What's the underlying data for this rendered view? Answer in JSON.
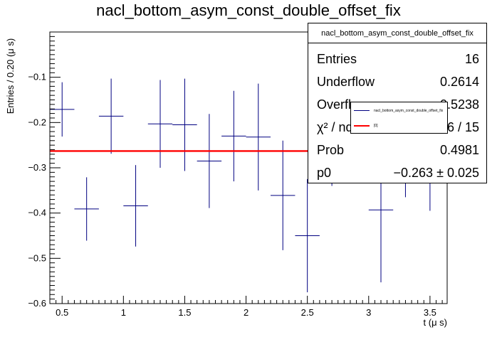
{
  "chart_data": {
    "type": "scatter",
    "title": "nacl_bottom_asym_const_double_offset_fix",
    "xlabel": "t (μ s)",
    "ylabel": "Entries / 0.20 (μ s)",
    "xlim": [
      0.4,
      3.64
    ],
    "ylim": [
      -0.6,
      0.0
    ],
    "x_ticks": [
      0.5,
      1,
      1.5,
      2,
      2.5,
      3,
      3.5
    ],
    "x_tick_labels": [
      "0.5",
      "1",
      "1.5",
      "2",
      "2.5",
      "3",
      "3.5"
    ],
    "y_ticks": [
      -0.1,
      -0.2,
      -0.3,
      -0.4,
      -0.5,
      -0.6
    ],
    "y_tick_labels": [
      "−0.1",
      "−0.2",
      "−0.3",
      "−0.4",
      "−0.5",
      "−0.6"
    ],
    "series": [
      {
        "name": "nacl_bottom_asym_const_double_offset_fix",
        "color": "#000080",
        "x": [
          0.5,
          0.7,
          0.9,
          1.1,
          1.3,
          1.5,
          1.7,
          1.9,
          2.1,
          2.3,
          2.5,
          2.7,
          2.9,
          3.1,
          3.3,
          3.5
        ],
        "y": [
          -0.171,
          -0.391,
          -0.186,
          -0.384,
          -0.203,
          -0.205,
          -0.285,
          -0.23,
          -0.232,
          -0.361,
          -0.45,
          -0.26,
          -0.2,
          -0.393,
          -0.33,
          -0.33
        ],
        "yerr": [
          0.06,
          0.07,
          0.083,
          0.09,
          0.097,
          0.102,
          0.104,
          0.1,
          0.118,
          0.121,
          0.125,
          0.08,
          0.08,
          0.16,
          0.035,
          0.065
        ],
        "xerr": 0.1
      }
    ],
    "fit": {
      "name": "[0]",
      "color": "#ff0000",
      "value": -0.263
    }
  },
  "stats": {
    "title": "nacl_bottom_asym_const_double_offset_fix",
    "rows": [
      {
        "label": "Entries",
        "value": "16"
      },
      {
        "label": "Underflow",
        "value": "0.2614"
      },
      {
        "label": "Overflow",
        "value": "0.5238"
      },
      {
        "label": "χ² / ndf",
        "value": "14.36 / 15"
      },
      {
        "label": "Prob",
        "value": "0.4981"
      },
      {
        "label": "p0",
        "value": "−0.263 ± 0.025"
      }
    ]
  },
  "legend": {
    "entries": [
      {
        "label": "nacl_bottom_asym_const_double_offset_fix",
        "color": "#000080"
      },
      {
        "label": "[0]",
        "color": "#ff0000"
      }
    ]
  }
}
